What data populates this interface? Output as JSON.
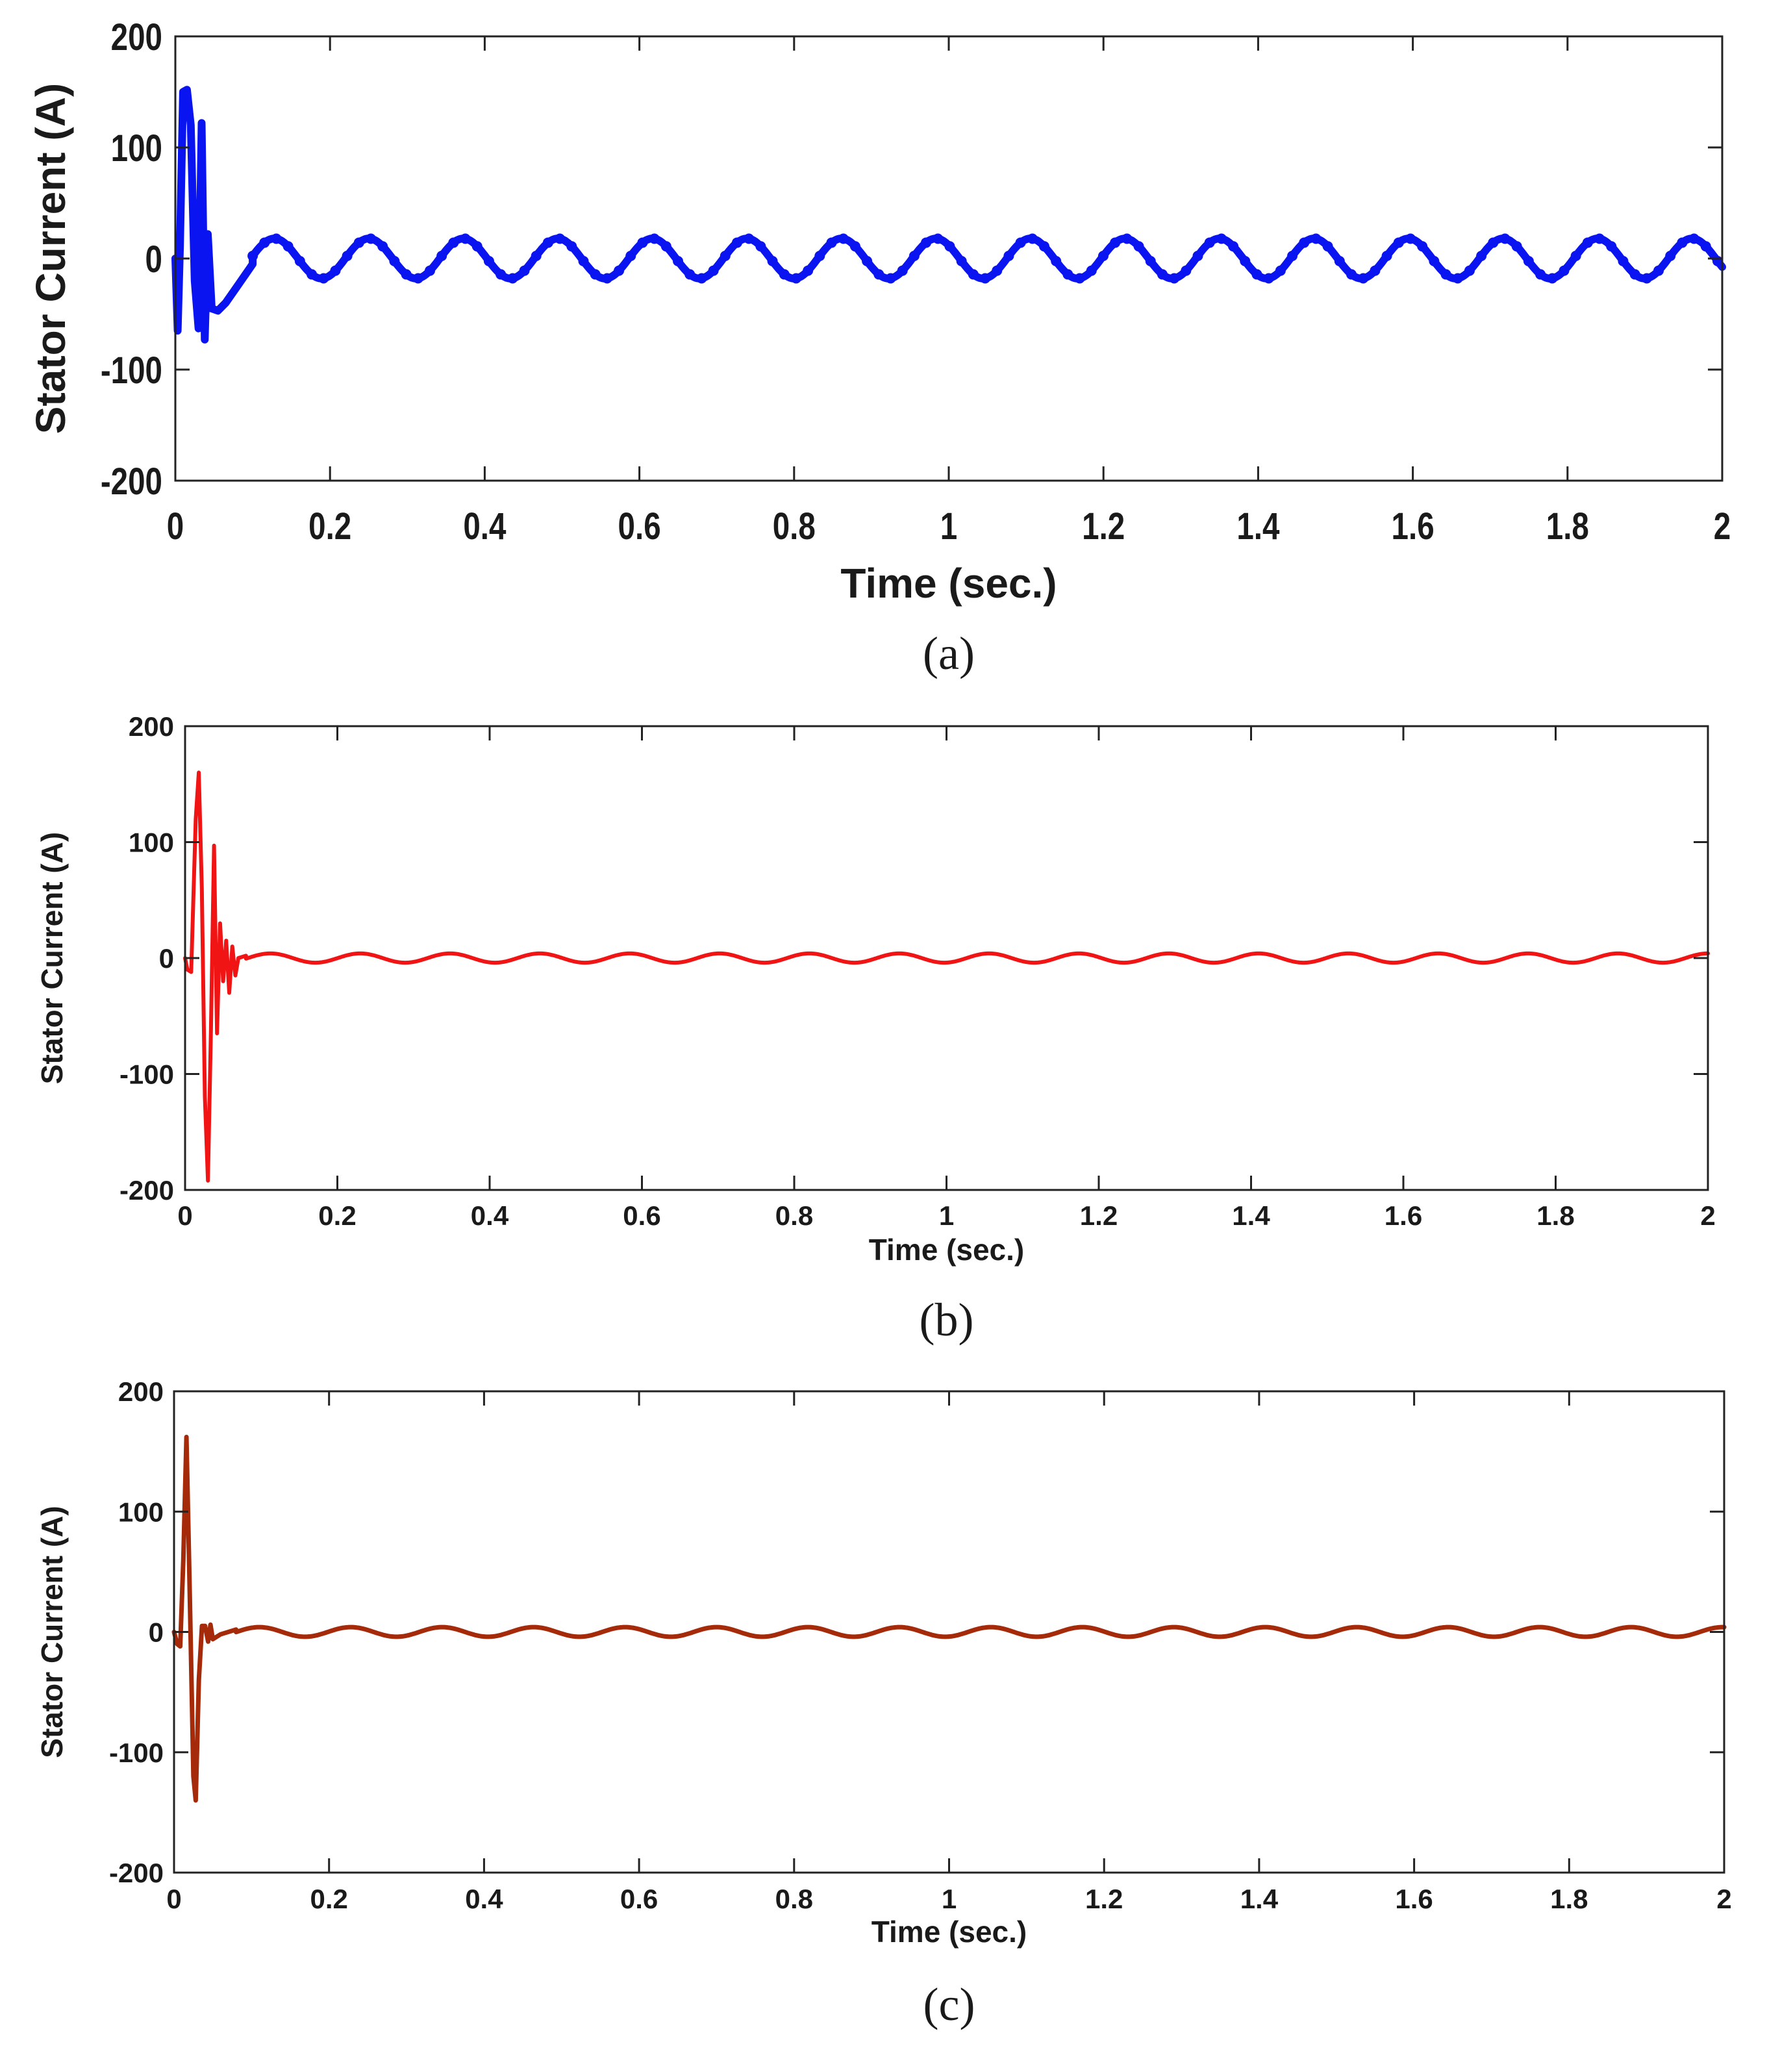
{
  "chart_data": [
    {
      "id": "a",
      "type": "line",
      "caption": "(a)",
      "xlabel": "Time (sec.)",
      "ylabel": "Stator Current (A)",
      "xlim": [
        0,
        2
      ],
      "ylim": [
        -200,
        200
      ],
      "xticks": [
        0,
        0.2,
        0.4,
        0.6,
        0.8,
        1,
        1.2,
        1.4,
        1.6,
        1.8,
        2
      ],
      "xtick_labels": [
        "0",
        "0.2",
        "0.4",
        "0.6",
        "0.8",
        "1",
        "1.2",
        "1.4",
        "1.6",
        "1.8",
        "2"
      ],
      "yticks": [
        -200,
        -100,
        0,
        100,
        200
      ],
      "ytick_labels": [
        "-200",
        "-100",
        "0",
        "100",
        "200"
      ],
      "grid": false,
      "color": "#0a14f0",
      "markers": true,
      "series": [
        {
          "transient": [
            [
              0,
              0
            ],
            [
              0.003,
              -65
            ],
            [
              0.006,
              10
            ],
            [
              0.01,
              150
            ],
            [
              0.015,
              152
            ],
            [
              0.02,
              120
            ],
            [
              0.025,
              -20
            ],
            [
              0.03,
              -63
            ],
            [
              0.034,
              122
            ],
            [
              0.038,
              -73
            ],
            [
              0.042,
              22
            ],
            [
              0.047,
              -45
            ],
            [
              0.055,
              -47
            ],
            [
              0.065,
              -40
            ],
            [
              0.08,
              -25
            ],
            [
              0.1,
              -5
            ]
          ],
          "steady_amplitude": 18,
          "steady_period": 0.1222,
          "steady_phase_ref": 0.128,
          "steady_start": 0.1
        }
      ]
    },
    {
      "id": "b",
      "type": "line",
      "caption": "(b)",
      "xlabel": "Time (sec.)",
      "ylabel": "Stator Current (A)",
      "xlim": [
        0,
        2
      ],
      "ylim": [
        -200,
        200
      ],
      "xticks": [
        0,
        0.2,
        0.4,
        0.6,
        0.8,
        1,
        1.2,
        1.4,
        1.6,
        1.8,
        2
      ],
      "xtick_labels": [
        "0",
        "0.2",
        "0.4",
        "0.6",
        "0.8",
        "1",
        "1.2",
        "1.4",
        "1.6",
        "1.8",
        "2"
      ],
      "yticks": [
        -200,
        -100,
        0,
        100,
        200
      ],
      "ytick_labels": [
        "-200",
        "-100",
        "0",
        "100",
        "200"
      ],
      "grid": false,
      "color": "#f01414",
      "markers": false,
      "series": [
        {
          "transient": [
            [
              0,
              0
            ],
            [
              0.003,
              -10
            ],
            [
              0.008,
              -12
            ],
            [
              0.014,
              120
            ],
            [
              0.018,
              160
            ],
            [
              0.022,
              60
            ],
            [
              0.026,
              -120
            ],
            [
              0.03,
              -192
            ],
            [
              0.034,
              -60
            ],
            [
              0.038,
              97
            ],
            [
              0.042,
              -65
            ],
            [
              0.046,
              30
            ],
            [
              0.05,
              -20
            ],
            [
              0.054,
              15
            ],
            [
              0.058,
              -30
            ],
            [
              0.062,
              10
            ],
            [
              0.066,
              -15
            ],
            [
              0.07,
              0
            ],
            [
              0.08,
              2
            ]
          ],
          "steady_amplitude": 4,
          "steady_period": 0.118,
          "steady_phase_ref": 0.112,
          "steady_start": 0.08
        }
      ]
    },
    {
      "id": "c",
      "type": "line",
      "caption": "(c)",
      "xlabel": "Time (sec.)",
      "ylabel": "Stator Current (A)",
      "xlim": [
        0,
        2
      ],
      "ylim": [
        -200,
        200
      ],
      "xticks": [
        0,
        0.2,
        0.4,
        0.6,
        0.8,
        1,
        1.2,
        1.4,
        1.6,
        1.8,
        2
      ],
      "xtick_labels": [
        "0",
        "0.2",
        "0.4",
        "0.6",
        "0.8",
        "1",
        "1.2",
        "1.4",
        "1.6",
        "1.8",
        "2"
      ],
      "yticks": [
        -200,
        -100,
        0,
        100,
        200
      ],
      "ytick_labels": [
        "-200",
        "-100",
        "0",
        "100",
        "200"
      ],
      "grid": false,
      "color": "#a52a0a",
      "markers": false,
      "series": [
        {
          "transient": [
            [
              0,
              0
            ],
            [
              0.004,
              -10
            ],
            [
              0.008,
              -12
            ],
            [
              0.012,
              60
            ],
            [
              0.016,
              162
            ],
            [
              0.02,
              40
            ],
            [
              0.025,
              -120
            ],
            [
              0.028,
              -140
            ],
            [
              0.032,
              -40
            ],
            [
              0.036,
              5
            ],
            [
              0.04,
              5
            ],
            [
              0.044,
              -8
            ],
            [
              0.047,
              6
            ],
            [
              0.05,
              -6
            ],
            [
              0.06,
              -2
            ],
            [
              0.08,
              2
            ]
          ],
          "steady_amplitude": 4,
          "steady_period": 0.118,
          "steady_phase_ref": 0.11,
          "steady_start": 0.08
        }
      ]
    }
  ]
}
